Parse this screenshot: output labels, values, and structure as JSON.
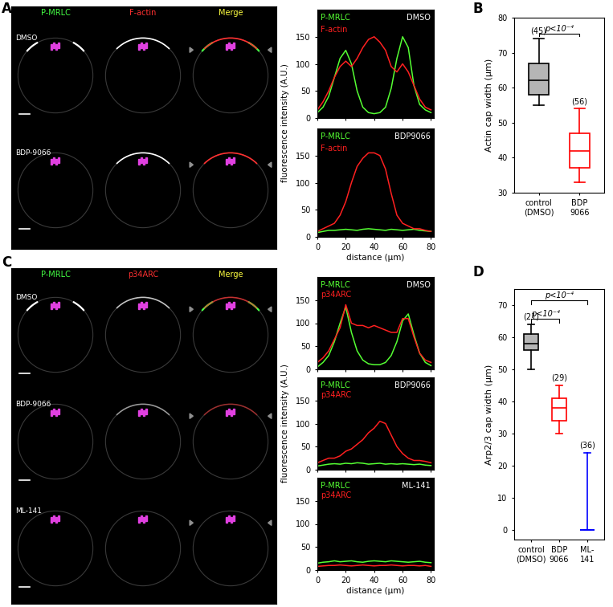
{
  "panel_labels": [
    "A",
    "B",
    "C",
    "D"
  ],
  "images": [
    {
      "panel": "A",
      "columns": [
        {
          "text": "P-MRLC",
          "color": "#44ff44"
        },
        {
          "text": "F-actin",
          "color": "#ff3030"
        },
        {
          "text": "Merge",
          "color": "#ffff40"
        }
      ],
      "rows": [
        "DMSO",
        "BDP-9066"
      ]
    },
    {
      "panel": "C",
      "columns": [
        {
          "text": "P-MRLC",
          "color": "#44ff44"
        },
        {
          "text": "p34ARC",
          "color": "#ff3030"
        },
        {
          "text": "Merge",
          "color": "#ffff40"
        }
      ],
      "rows": [
        "DMSO",
        "BDP-9066",
        "ML-141"
      ]
    }
  ],
  "chart_data": [
    {
      "type": "line",
      "title": "DMSO",
      "tick_labels": "y",
      "x": [
        0,
        4,
        8,
        12,
        16,
        20,
        24,
        28,
        32,
        36,
        40,
        44,
        48,
        52,
        56,
        60,
        64,
        68,
        72,
        76,
        80
      ],
      "series": [
        {
          "name": "P-MRLC",
          "color": "#55ff33",
          "values": [
            10,
            20,
            40,
            75,
            110,
            125,
            100,
            50,
            20,
            10,
            8,
            10,
            20,
            55,
            110,
            150,
            130,
            60,
            25,
            15,
            10
          ]
        },
        {
          "name": "F-actin",
          "color": "#ff2020",
          "values": [
            15,
            30,
            50,
            75,
            95,
            105,
            95,
            110,
            130,
            145,
            150,
            140,
            125,
            95,
            85,
            100,
            85,
            60,
            35,
            20,
            15
          ]
        }
      ],
      "xlim": [
        0,
        82
      ],
      "ylim": [
        0,
        200
      ],
      "xticks": [
        0,
        20,
        40,
        60,
        80
      ],
      "yticks": [
        0,
        50,
        100,
        150
      ]
    },
    {
      "type": "line",
      "title": "BDP9066",
      "xlabel": "distance (µm)",
      "ylabel": "fluorescence intensity (A.U.)",
      "x": [
        0,
        4,
        8,
        12,
        16,
        20,
        24,
        28,
        32,
        36,
        40,
        44,
        48,
        52,
        56,
        60,
        64,
        68,
        72,
        76,
        80
      ],
      "series": [
        {
          "name": "P-MRLC",
          "color": "#55ff33",
          "values": [
            8,
            10,
            12,
            12,
            13,
            14,
            13,
            12,
            14,
            15,
            14,
            13,
            12,
            14,
            13,
            12,
            13,
            14,
            12,
            11,
            10
          ]
        },
        {
          "name": "F-actin",
          "color": "#ff2020",
          "values": [
            10,
            15,
            20,
            25,
            40,
            65,
            100,
            130,
            145,
            155,
            155,
            150,
            125,
            80,
            40,
            25,
            20,
            15,
            15,
            12,
            10
          ]
        }
      ],
      "xlim": [
        0,
        82
      ],
      "ylim": [
        0,
        200
      ],
      "xticks": [
        0,
        20,
        40,
        60,
        80
      ],
      "yticks": [
        0,
        50,
        100,
        150
      ]
    },
    {
      "type": "box",
      "ylabel": "Actin cap width (µm)",
      "categories": [
        "control\n(DMSO)",
        "BDP\n9066"
      ],
      "boxes": [
        {
          "whislo": 55,
          "q1": 58,
          "med": 62,
          "q3": 67,
          "whishi": 74
        },
        {
          "whislo": 33,
          "q1": 37,
          "med": 42,
          "q3": 47,
          "whishi": 54
        }
      ],
      "n_labels": [
        "(45)",
        "(56)"
      ],
      "colors": [
        "#000000",
        "#ff0000"
      ],
      "comparisons": [
        {
          "from": 0,
          "to": 1,
          "label": "p<10⁻⁴"
        }
      ],
      "ylim": [
        30,
        80
      ],
      "yticks": [
        30,
        40,
        50,
        60,
        70,
        80
      ]
    },
    {
      "type": "line",
      "title": "DMSO",
      "tick_labels": "y",
      "x": [
        0,
        4,
        8,
        12,
        16,
        20,
        24,
        28,
        32,
        36,
        40,
        44,
        48,
        52,
        56,
        60,
        64,
        68,
        72,
        76,
        80
      ],
      "series": [
        {
          "name": "P-MRLC",
          "color": "#55ff33",
          "values": [
            5,
            15,
            30,
            60,
            100,
            135,
            80,
            40,
            20,
            12,
            10,
            10,
            15,
            30,
            60,
            105,
            120,
            75,
            35,
            15,
            8
          ]
        },
        {
          "name": "p34ARC",
          "color": "#ff2020",
          "values": [
            15,
            25,
            40,
            65,
            90,
            140,
            100,
            95,
            95,
            90,
            95,
            90,
            85,
            80,
            80,
            110,
            110,
            70,
            35,
            20,
            15
          ]
        }
      ],
      "xlim": [
        0,
        82
      ],
      "ylim": [
        0,
        200
      ],
      "xticks": [
        0,
        20,
        40,
        60,
        80
      ],
      "yticks": [
        0,
        50,
        100,
        150
      ]
    },
    {
      "type": "line",
      "title": "BDP9066",
      "tick_labels": "y",
      "ylabel": "fluorescence intensity (A.U.)",
      "x": [
        0,
        4,
        8,
        12,
        16,
        20,
        24,
        28,
        32,
        36,
        40,
        44,
        48,
        52,
        56,
        60,
        64,
        68,
        72,
        76,
        80
      ],
      "series": [
        {
          "name": "P-MRLC",
          "color": "#55ff33",
          "values": [
            8,
            10,
            12,
            13,
            12,
            14,
            13,
            15,
            14,
            12,
            13,
            14,
            12,
            13,
            12,
            13,
            12,
            11,
            12,
            10,
            9
          ]
        },
        {
          "name": "p34ARC",
          "color": "#ff2020",
          "values": [
            15,
            20,
            25,
            25,
            30,
            40,
            45,
            55,
            65,
            80,
            90,
            105,
            100,
            75,
            50,
            35,
            25,
            20,
            20,
            18,
            15
          ]
        }
      ],
      "xlim": [
        0,
        82
      ],
      "ylim": [
        0,
        200
      ],
      "xticks": [
        0,
        20,
        40,
        60,
        80
      ],
      "yticks": [
        0,
        50,
        100,
        150
      ]
    },
    {
      "type": "line",
      "title": "ML-141",
      "xlabel": "distance (µm)",
      "x": [
        0,
        4,
        8,
        12,
        16,
        20,
        24,
        28,
        32,
        36,
        40,
        44,
        48,
        52,
        56,
        60,
        64,
        68,
        72,
        76,
        80
      ],
      "series": [
        {
          "name": "P-MRLC",
          "color": "#55ff33",
          "values": [
            15,
            17,
            18,
            20,
            18,
            19,
            20,
            18,
            17,
            19,
            20,
            19,
            18,
            20,
            19,
            18,
            17,
            18,
            19,
            17,
            16
          ]
        },
        {
          "name": "p34ARC",
          "color": "#ff2020",
          "values": [
            8,
            9,
            10,
            10,
            11,
            10,
            9,
            10,
            11,
            10,
            9,
            10,
            10,
            11,
            10,
            9,
            10,
            10,
            9,
            10,
            8
          ]
        }
      ],
      "xlim": [
        0,
        82
      ],
      "ylim": [
        0,
        200
      ],
      "xticks": [
        0,
        20,
        40,
        60,
        80
      ],
      "yticks": [
        0,
        50,
        100,
        150
      ]
    },
    {
      "type": "box",
      "ylabel": "Arp2/3 cap width (µm)",
      "categories": [
        "control\n(DMSO)",
        "BDP\n9066",
        "ML-\n141"
      ],
      "boxes": [
        {
          "whislo": 50,
          "q1": 56,
          "med": 58,
          "q3": 61,
          "whishi": 64
        },
        {
          "whislo": 30,
          "q1": 34,
          "med": 38,
          "q3": 41,
          "whishi": 45
        },
        {
          "whislo": 0,
          "q1": 0,
          "med": 0,
          "q3": 0,
          "whishi": 24
        }
      ],
      "n_labels": [
        "(21)",
        "(29)",
        "(36)"
      ],
      "colors": [
        "#000000",
        "#ff0000",
        "#0000ff"
      ],
      "comparisons": [
        {
          "from": 0,
          "to": 1,
          "label": "p<10⁻⁴"
        },
        {
          "from": 0,
          "to": 2,
          "label": "p<10⁻⁴"
        }
      ],
      "ylim": [
        -3,
        75
      ],
      "yticks": [
        0,
        10,
        20,
        30,
        40,
        50,
        60,
        70
      ]
    }
  ]
}
